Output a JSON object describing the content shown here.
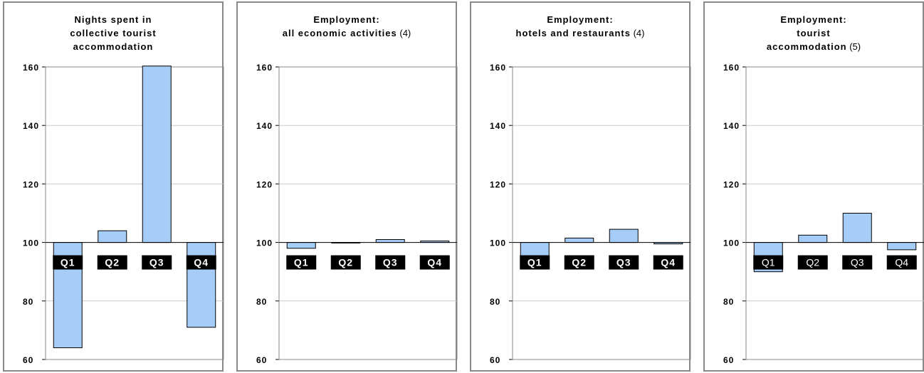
{
  "chart_data": [
    {
      "type": "bar",
      "title_lines": [
        "Nights spent in",
        "collective tourist",
        "accommodation"
      ],
      "title_note": "",
      "categories": [
        "Q1",
        "Q2",
        "Q3",
        "Q4"
      ],
      "values": [
        64,
        104,
        161,
        71
      ],
      "baseline": 100,
      "ylim": [
        60,
        160
      ],
      "yticks": [
        "60",
        "80",
        "100",
        "120",
        "140",
        "160"
      ],
      "grid": true,
      "label_bold": true,
      "bar_color": "#a6cdf7"
    },
    {
      "type": "bar",
      "title_lines": [
        "Employment:",
        "all economic activities"
      ],
      "title_note": "(4)",
      "categories": [
        "Q1",
        "Q2",
        "Q3",
        "Q4"
      ],
      "values": [
        98,
        100,
        101,
        100.5
      ],
      "baseline": 100,
      "ylim": [
        60,
        160
      ],
      "yticks": [
        "60",
        "80",
        "100",
        "120",
        "140",
        "160"
      ],
      "grid": true,
      "label_bold": true,
      "bar_color": "#a6cdf7"
    },
    {
      "type": "bar",
      "title_lines": [
        "Employment:",
        "hotels and restaurants"
      ],
      "title_note": "(4)",
      "categories": [
        "Q1",
        "Q2",
        "Q3",
        "Q4"
      ],
      "values": [
        95,
        101.5,
        104.5,
        99.5
      ],
      "baseline": 100,
      "ylim": [
        60,
        160
      ],
      "yticks": [
        "60",
        "80",
        "100",
        "120",
        "140",
        "160"
      ],
      "grid": true,
      "label_bold": true,
      "bar_color": "#a6cdf7"
    },
    {
      "type": "bar",
      "title_lines": [
        "Employment:",
        "tourist",
        "accommodation"
      ],
      "title_note": "(5)",
      "categories": [
        "Q1",
        "Q2",
        "Q3",
        "Q4"
      ],
      "values": [
        90,
        102.5,
        110,
        97.5
      ],
      "baseline": 100,
      "ylim": [
        60,
        160
      ],
      "yticks": [
        "60",
        "80",
        "100",
        "120",
        "140",
        "160"
      ],
      "grid": true,
      "label_bold": false,
      "bar_color": "#a6cdf7"
    }
  ]
}
